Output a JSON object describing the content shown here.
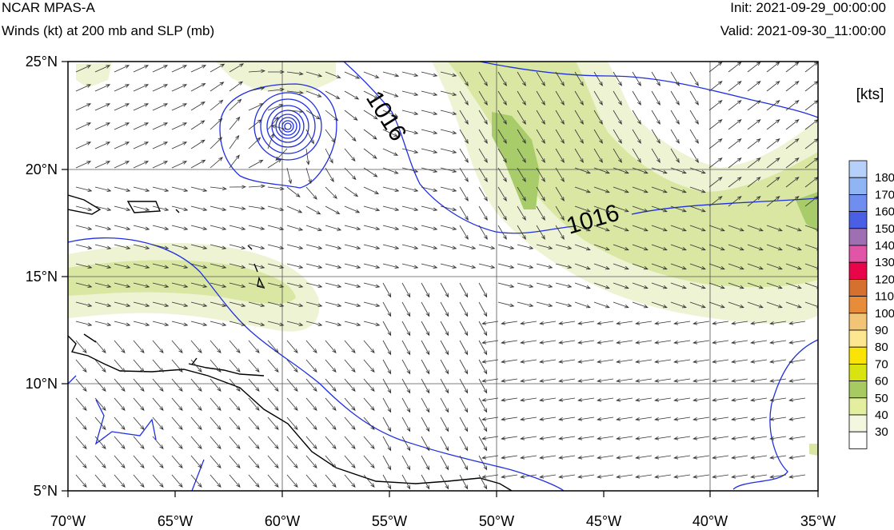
{
  "header": {
    "model": "NCAR MPAS-A",
    "field": "Winds (kt) at 200 mb and SLP (mb)",
    "init": "Init: 2021-09-29_00:00:00",
    "valid": "Valid: 2021-09-30_11:00:00"
  },
  "map": {
    "lon_range": [
      -70,
      -35
    ],
    "lat_range": [
      5,
      25
    ],
    "lon_ticks": [
      "70°W",
      "65°W",
      "60°W",
      "55°W",
      "50°W",
      "45°W",
      "40°W",
      "35°W"
    ],
    "lat_ticks": [
      "5°N",
      "10°N",
      "15°N",
      "20°N",
      "25°N"
    ],
    "gridlines": true,
    "contour_labels": [
      "1016",
      "1016"
    ],
    "colors": {
      "slp_contour": "#1f2fe0",
      "coastline": "#000000",
      "wind_30_40": "#eef3d4",
      "wind_40_50": "#d9e7a3",
      "wind_50_60": "#a9cc6a"
    },
    "wind_arrows": "vector-field"
  },
  "colorbar": {
    "units": "[kts]",
    "labels": [
      "180",
      "170",
      "160",
      "150",
      "140",
      "130",
      "120",
      "110",
      "100",
      "90",
      "80",
      "70",
      "60",
      "50",
      "40",
      "30"
    ],
    "colors": [
      "#b7d0fa",
      "#8fb5f4",
      "#6f8ef0",
      "#4a5fe4",
      "#9f6fb3",
      "#e155a6",
      "#e8054a",
      "#d5702f",
      "#e98c3a",
      "#f2c576",
      "#fce68f",
      "#f9e406",
      "#d9e30f",
      "#a8cb61",
      "#e3ee9f",
      "#f4f7e0",
      "#ffffff"
    ]
  }
}
